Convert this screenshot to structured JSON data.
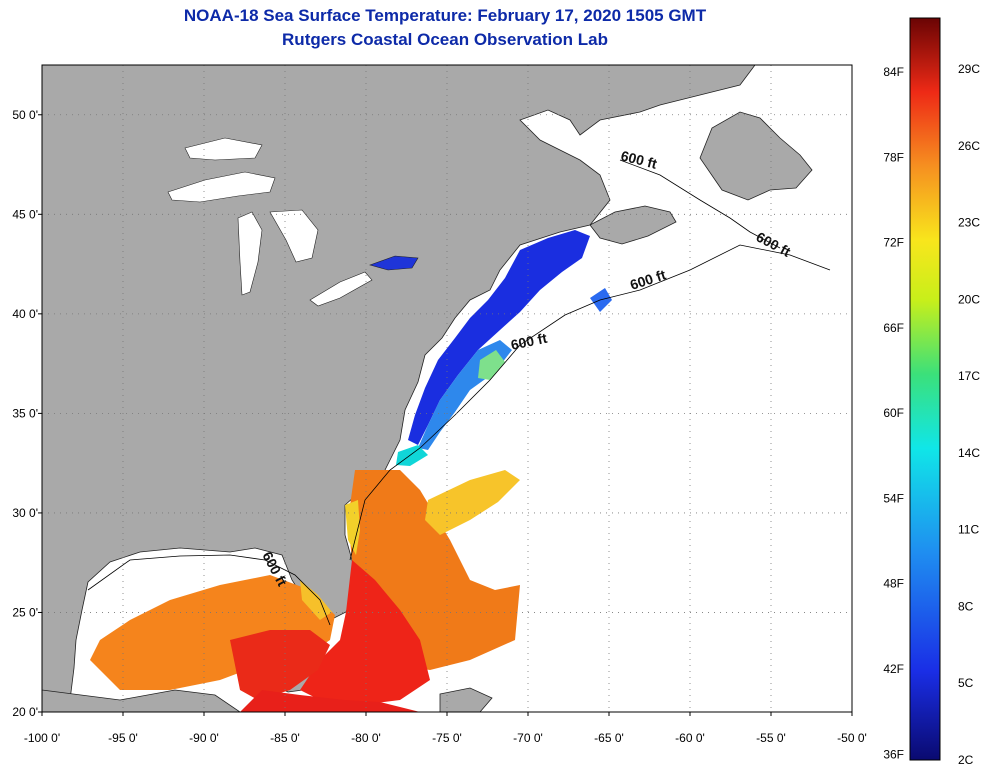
{
  "header": {
    "title": "NOAA-18 Sea Surface Temperature:  February 17, 2020 1505 GMT",
    "subtitle": "Rutgers Coastal Ocean Observation Lab"
  },
  "map": {
    "lon_labels": [
      "-100 0'",
      "-95 0'",
      "-90 0'",
      "-85 0'",
      "-80 0'",
      "-75 0'",
      "-70 0'",
      "-65 0'",
      "-60 0'",
      "-55 0'",
      "-50 0'"
    ],
    "lat_labels": [
      "50 0'",
      "45 0'",
      "40 0'",
      "35 0'",
      "30 0'",
      "25 0'",
      "20 0'"
    ],
    "lon_range": [
      -100,
      -50
    ],
    "lat_range": [
      20,
      52.5
    ],
    "contour_label": "600 ft",
    "colors": {
      "land": "#a9a9a9",
      "ocean_nodata": "#ffffff",
      "grid": "#777777"
    }
  },
  "colorbar": {
    "fahrenheit_labels": [
      "84F",
      "78F",
      "72F",
      "66F",
      "60F",
      "54F",
      "48F",
      "42F",
      "36F"
    ],
    "celsius_labels": [
      "29C",
      "26C",
      "23C",
      "20C",
      "17C",
      "14C",
      "11C",
      "8C",
      "5C",
      "2C"
    ],
    "range_c": [
      2,
      31
    ]
  }
}
